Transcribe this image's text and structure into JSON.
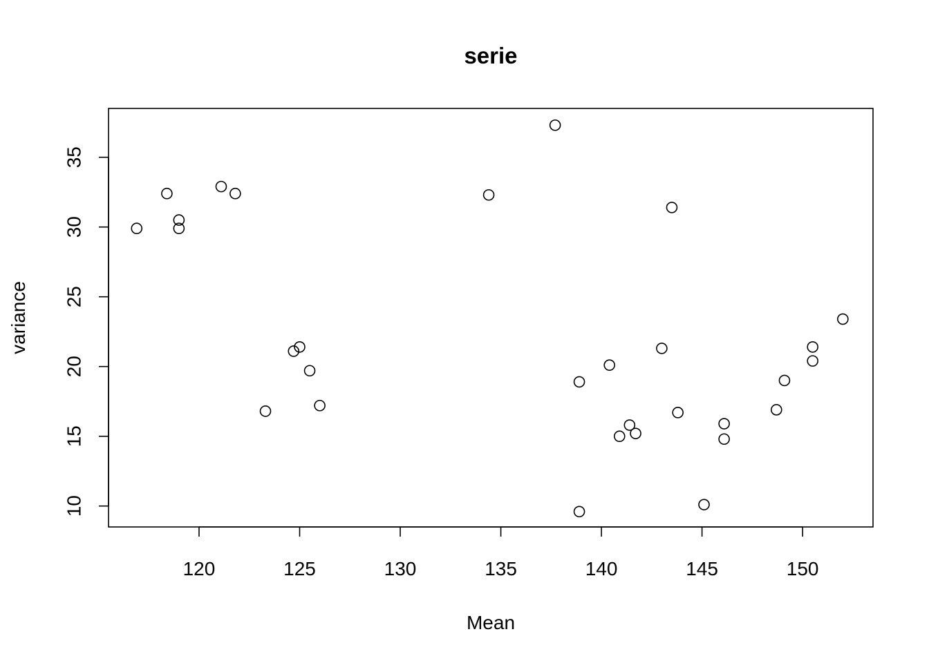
{
  "chart_data": {
    "type": "scatter",
    "title": "serie",
    "xlabel": "Mean",
    "ylabel": "variance",
    "xlim": [
      115.5,
      153.5
    ],
    "ylim": [
      8.5,
      38.5
    ],
    "xticks": [
      120,
      125,
      130,
      135,
      140,
      145,
      150
    ],
    "yticks": [
      10,
      15,
      20,
      25,
      30,
      35
    ],
    "grid": false,
    "legend": "none",
    "marker": "open-circle",
    "points": [
      {
        "x": 116.9,
        "y": 29.9
      },
      {
        "x": 118.4,
        "y": 32.4
      },
      {
        "x": 119.0,
        "y": 30.5
      },
      {
        "x": 119.0,
        "y": 29.9
      },
      {
        "x": 121.1,
        "y": 32.9
      },
      {
        "x": 121.8,
        "y": 32.4
      },
      {
        "x": 123.3,
        "y": 16.8
      },
      {
        "x": 124.7,
        "y": 21.1
      },
      {
        "x": 125.0,
        "y": 21.4
      },
      {
        "x": 125.5,
        "y": 19.7
      },
      {
        "x": 126.0,
        "y": 17.2
      },
      {
        "x": 134.4,
        "y": 32.3
      },
      {
        "x": 137.7,
        "y": 37.3
      },
      {
        "x": 138.9,
        "y": 18.9
      },
      {
        "x": 138.9,
        "y": 9.6
      },
      {
        "x": 140.4,
        "y": 20.1
      },
      {
        "x": 140.9,
        "y": 15.0
      },
      {
        "x": 141.4,
        "y": 15.8
      },
      {
        "x": 141.7,
        "y": 15.2
      },
      {
        "x": 143.0,
        "y": 21.3
      },
      {
        "x": 143.5,
        "y": 31.4
      },
      {
        "x": 143.8,
        "y": 16.7
      },
      {
        "x": 145.1,
        "y": 10.1
      },
      {
        "x": 146.1,
        "y": 15.9
      },
      {
        "x": 146.1,
        "y": 14.8
      },
      {
        "x": 148.7,
        "y": 16.9
      },
      {
        "x": 149.1,
        "y": 19.0
      },
      {
        "x": 150.5,
        "y": 21.4
      },
      {
        "x": 150.5,
        "y": 20.4
      },
      {
        "x": 152.0,
        "y": 23.4
      }
    ]
  }
}
